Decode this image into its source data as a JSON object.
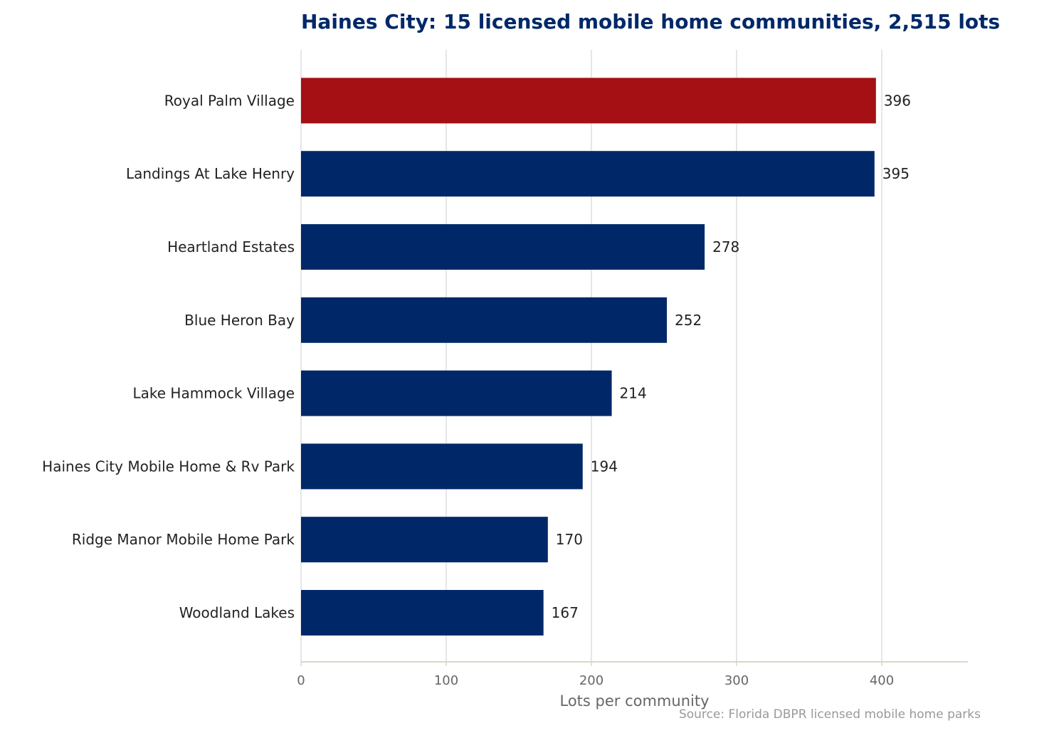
{
  "chart_data": {
    "type": "bar",
    "orientation": "horizontal",
    "title": "Haines City: 15 licensed mobile home communities, 2,515 lots",
    "xlabel": "Lots per community",
    "source": "Source: Florida DBPR licensed mobile home parks",
    "categories": [
      "Royal Palm Village",
      "Landings At Lake Henry",
      "Heartland Estates",
      "Blue Heron Bay",
      "Lake Hammock Village",
      "Haines City Mobile Home & Rv Park",
      "Ridge Manor Mobile Home Park",
      "Woodland Lakes"
    ],
    "values": [
      396,
      395,
      278,
      252,
      214,
      194,
      170,
      167
    ],
    "value_labels": [
      "396",
      "395",
      "278",
      "252",
      "214",
      "194",
      "170",
      "167"
    ],
    "highlight": [
      "Royal Palm Village"
    ],
    "xticks": [
      0,
      100,
      200,
      300,
      400
    ],
    "xtick_labels": [
      "0",
      "100",
      "200",
      "300",
      "400"
    ],
    "xlim": [
      0,
      460
    ],
    "grid": "vertical",
    "legend": "none",
    "colors": {
      "bar": "#002868",
      "highlight": "#A51015",
      "title": "#002868",
      "grid": "#dddddd",
      "axis": "#d8d8cc"
    }
  }
}
